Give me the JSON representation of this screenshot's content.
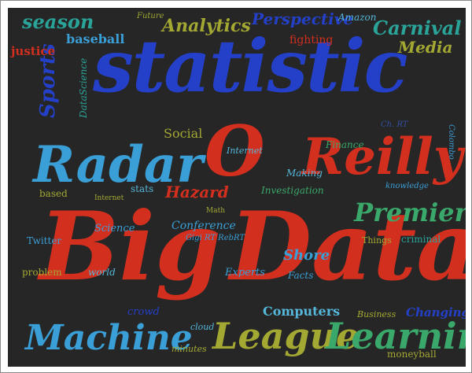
{
  "cloud": {
    "colors": {
      "red": "#d32f1f",
      "blue": "#2440c9",
      "cyan": "#3a9fd6",
      "teal": "#2aa398",
      "olive": "#a3a833",
      "navy": "#3350a3",
      "green": "#3aa86a",
      "lightblue": "#55b7d9"
    },
    "words": {
      "statistic": "statistic",
      "big": "Big",
      "data": "Data",
      "radar": "Radar",
      "o": "O",
      "reilly": "Reilly",
      "machine": "Machine",
      "league": "League",
      "learning": "Learning",
      "premier": "Premier",
      "season": "season",
      "sports": "Sports",
      "analytics": "Analytics",
      "perspective": "Perspective",
      "baseball": "baseball",
      "amazon": "Amazon",
      "carnival": "Carnival",
      "media": "Media",
      "fighting": "fighting",
      "future": "Future",
      "justice": "justice",
      "datascience": "DataScience",
      "social": "Social",
      "internet": "Internet",
      "finance": "Finance",
      "making": "Making",
      "hazard": "Hazard",
      "conference": "Conference",
      "shore": "Shore",
      "experts": "Experts",
      "facts": "Facts",
      "science": "Science",
      "computers": "Computers",
      "business": "Business",
      "changing": "Changing",
      "criminal": "criminal",
      "things": "Things",
      "twitter": "Twitter",
      "problem": "problem",
      "based": "based",
      "stats": "stats",
      "world": "world",
      "minutes": "minutes",
      "moneyball": "moneyball",
      "cloud_word": "cloud",
      "crowd": "crowd",
      "knowledge": "knowledge",
      "investigation": "Investigation",
      "math": "Math",
      "retweet": "Gigi RT RebRT",
      "colombo": "Colombo",
      "chapter": "Ch. RT",
      "internet2": "Internet"
    }
  }
}
